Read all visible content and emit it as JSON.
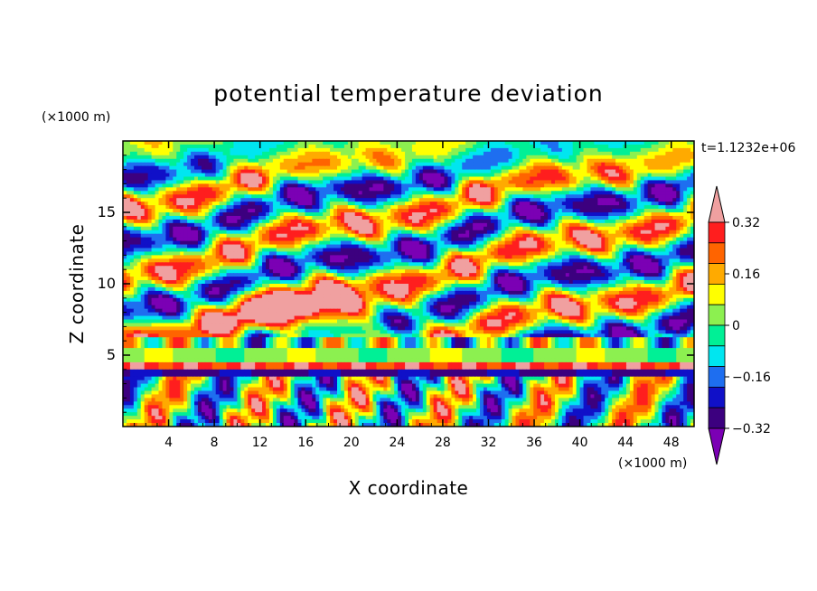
{
  "chart_data": {
    "type": "heatmap",
    "title": "potential temperature deviation",
    "time_label": "t=1.1232e+06",
    "xlabel": "X coordinate",
    "ylabel": "Z coordinate",
    "x_unit": "(×1000 m)",
    "y_unit": "(×1000 m)",
    "xlim": [
      0,
      50
    ],
    "ylim": [
      0,
      20
    ],
    "x_ticks": [
      4,
      8,
      12,
      16,
      20,
      24,
      28,
      32,
      36,
      40,
      44,
      48
    ],
    "y_ticks": [
      5,
      10,
      15
    ],
    "colorbar": {
      "levels": [
        -0.4,
        -0.32,
        -0.24,
        -0.16,
        -0.08,
        0,
        0.08,
        0.16,
        0.24,
        0.32,
        0.4
      ],
      "tick_labels": [
        "0.32",
        "0.16",
        "0",
        "−0.16",
        "−0.32"
      ],
      "tick_values": [
        0.32,
        0.16,
        0,
        -0.16,
        -0.32
      ],
      "colors": [
        "#7b00b4",
        "#3c007f",
        "#1010c8",
        "#1e6ef0",
        "#00e6f0",
        "#00f096",
        "#8cf050",
        "#ffff00",
        "#ffaa00",
        "#ff6400",
        "#ff1e1e",
        "#f0a0a0"
      ]
    }
  }
}
